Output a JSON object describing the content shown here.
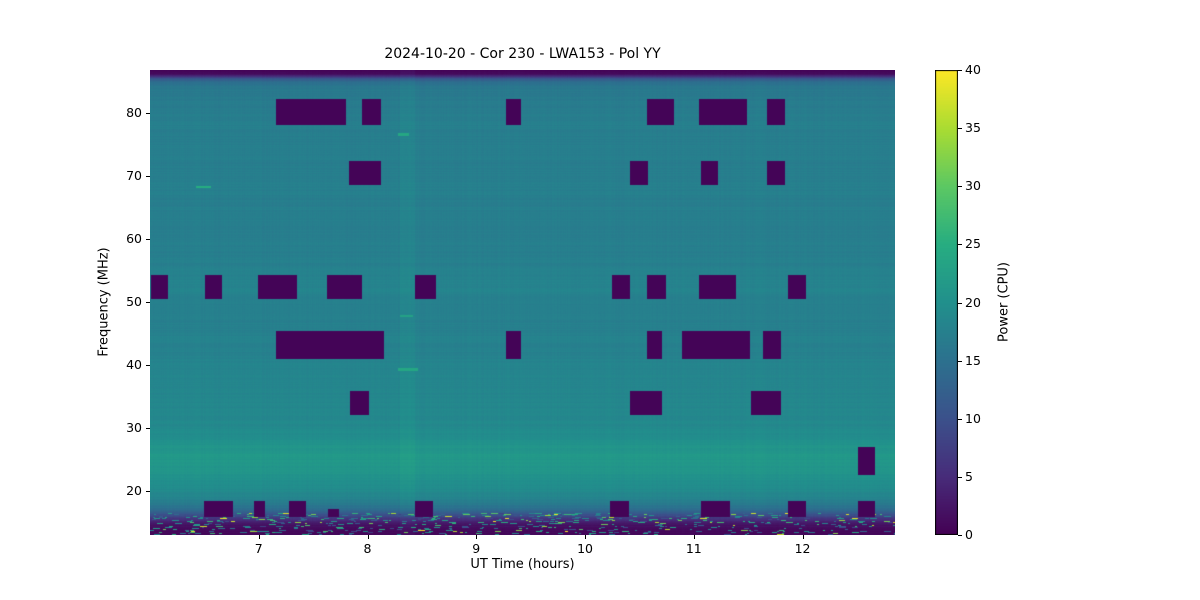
{
  "chart_data": {
    "type": "heatmap",
    "title": "2024-10-20 - Cor 230 - LWA153 - Pol YY",
    "xlabel": "UT Time (hours)",
    "ylabel": "Frequency (MHz)",
    "xlim": [
      6.0,
      12.85
    ],
    "ylim": [
      13.0,
      86.8
    ],
    "xticks": [
      7,
      8,
      9,
      10,
      11,
      12
    ],
    "yticks": [
      20,
      30,
      40,
      50,
      60,
      70,
      80
    ],
    "colorbar": {
      "label": "Power (CPU)",
      "min": 0,
      "max": 40,
      "ticks": [
        0,
        5,
        10,
        15,
        20,
        25,
        30,
        35,
        40
      ]
    },
    "colormap": "viridis",
    "colormap_stops": [
      [
        0.0,
        "#440154"
      ],
      [
        0.125,
        "#472c7a"
      ],
      [
        0.25,
        "#3b518b"
      ],
      [
        0.375,
        "#2c718e"
      ],
      [
        0.5,
        "#21908c"
      ],
      [
        0.625,
        "#27ad81"
      ],
      [
        0.75,
        "#5cc863"
      ],
      [
        0.875,
        "#aadc32"
      ],
      [
        1.0,
        "#fde725"
      ]
    ],
    "background_profile": [
      [
        86.8,
        0.5
      ],
      [
        86.3,
        0.8
      ],
      [
        85.9,
        5
      ],
      [
        85.4,
        12
      ],
      [
        84.8,
        15
      ],
      [
        84.0,
        16.3
      ],
      [
        82.0,
        16.8
      ],
      [
        80.0,
        17.0
      ],
      [
        78.0,
        17.3
      ],
      [
        76.0,
        17.0
      ],
      [
        74.0,
        17.2
      ],
      [
        72.0,
        17.0
      ],
      [
        70.0,
        17.2
      ],
      [
        68.0,
        17.4
      ],
      [
        66.0,
        17.1
      ],
      [
        64.0,
        17.3
      ],
      [
        62.0,
        17.1
      ],
      [
        60.0,
        17.3
      ],
      [
        58.0,
        17.1
      ],
      [
        56.0,
        17.4
      ],
      [
        54.0,
        17.6
      ],
      [
        52.5,
        18.1
      ],
      [
        51.0,
        17.8
      ],
      [
        50.0,
        17.3
      ],
      [
        48.0,
        17.6
      ],
      [
        46.0,
        17.4
      ],
      [
        44.0,
        17.8
      ],
      [
        42.0,
        17.6
      ],
      [
        40.0,
        18.0
      ],
      [
        38.0,
        18.1
      ],
      [
        36.0,
        18.3
      ],
      [
        34.0,
        18.5
      ],
      [
        32.0,
        18.7
      ],
      [
        30.0,
        19.0
      ],
      [
        28.5,
        19.6
      ],
      [
        27.0,
        20.8
      ],
      [
        25.5,
        21.4
      ],
      [
        24.0,
        21.2
      ],
      [
        22.5,
        20.6
      ],
      [
        21.0,
        19.6
      ],
      [
        20.0,
        19.1
      ],
      [
        19.0,
        18.2
      ],
      [
        18.0,
        16.8
      ],
      [
        17.0,
        14.5
      ],
      [
        16.4,
        11.5
      ],
      [
        15.9,
        8.5
      ],
      [
        15.4,
        5.5
      ],
      [
        15.0,
        3.5
      ],
      [
        14.5,
        2.0
      ],
      [
        14.0,
        1.2
      ],
      [
        13.0,
        0.8
      ]
    ],
    "flagged_regions": [
      {
        "t0": 7.16,
        "t1": 7.8,
        "f0": 78.1,
        "f1": 82.2
      },
      {
        "t0": 7.95,
        "t1": 8.12,
        "f0": 78.1,
        "f1": 82.2
      },
      {
        "t0": 9.27,
        "t1": 9.41,
        "f0": 78.1,
        "f1": 82.2
      },
      {
        "t0": 10.57,
        "t1": 10.82,
        "f0": 78.1,
        "f1": 82.2
      },
      {
        "t0": 11.05,
        "t1": 11.49,
        "f0": 78.1,
        "f1": 82.2
      },
      {
        "t0": 11.67,
        "t1": 11.84,
        "f0": 78.1,
        "f1": 82.2
      },
      {
        "t0": 7.83,
        "t1": 8.12,
        "f0": 68.6,
        "f1": 72.4
      },
      {
        "t0": 10.41,
        "t1": 10.58,
        "f0": 68.6,
        "f1": 72.4
      },
      {
        "t0": 11.07,
        "t1": 11.22,
        "f0": 68.6,
        "f1": 72.4
      },
      {
        "t0": 11.67,
        "t1": 11.84,
        "f0": 68.6,
        "f1": 72.4
      },
      {
        "t0": 6.01,
        "t1": 6.17,
        "f0": 50.4,
        "f1": 54.2
      },
      {
        "t0": 6.51,
        "t1": 6.66,
        "f0": 50.4,
        "f1": 54.2
      },
      {
        "t0": 6.99,
        "t1": 7.35,
        "f0": 50.4,
        "f1": 54.2
      },
      {
        "t0": 7.63,
        "t1": 7.95,
        "f0": 50.4,
        "f1": 54.2
      },
      {
        "t0": 8.44,
        "t1": 8.63,
        "f0": 50.4,
        "f1": 54.2
      },
      {
        "t0": 10.25,
        "t1": 10.41,
        "f0": 50.4,
        "f1": 54.2
      },
      {
        "t0": 10.57,
        "t1": 10.74,
        "f0": 50.4,
        "f1": 54.2
      },
      {
        "t0": 11.05,
        "t1": 11.39,
        "f0": 50.4,
        "f1": 54.2
      },
      {
        "t0": 11.87,
        "t1": 12.03,
        "f0": 50.4,
        "f1": 54.2
      },
      {
        "t0": 7.16,
        "t1": 8.15,
        "f0": 40.9,
        "f1": 45.3
      },
      {
        "t0": 9.27,
        "t1": 9.41,
        "f0": 40.9,
        "f1": 45.3
      },
      {
        "t0": 10.57,
        "t1": 10.71,
        "f0": 40.9,
        "f1": 45.3
      },
      {
        "t0": 10.89,
        "t1": 11.52,
        "f0": 40.9,
        "f1": 45.3
      },
      {
        "t0": 11.64,
        "t1": 11.8,
        "f0": 40.9,
        "f1": 45.3
      },
      {
        "t0": 7.84,
        "t1": 8.01,
        "f0": 32.1,
        "f1": 35.9
      },
      {
        "t0": 10.41,
        "t1": 10.71,
        "f0": 32.1,
        "f1": 35.9
      },
      {
        "t0": 11.53,
        "t1": 11.8,
        "f0": 32.1,
        "f1": 35.9
      },
      {
        "t0": 12.51,
        "t1": 12.67,
        "f0": 22.6,
        "f1": 27.0
      },
      {
        "t0": 6.5,
        "t1": 6.76,
        "f0": 15.9,
        "f1": 18.4
      },
      {
        "t0": 6.96,
        "t1": 7.06,
        "f0": 15.9,
        "f1": 18.4
      },
      {
        "t0": 7.28,
        "t1": 7.43,
        "f0": 15.9,
        "f1": 18.4
      },
      {
        "t0": 7.64,
        "t1": 7.74,
        "f0": 15.9,
        "f1": 17.2
      },
      {
        "t0": 8.44,
        "t1": 8.6,
        "f0": 15.9,
        "f1": 18.4
      },
      {
        "t0": 10.23,
        "t1": 10.4,
        "f0": 15.9,
        "f1": 18.4
      },
      {
        "t0": 11.07,
        "t1": 11.33,
        "f0": 15.9,
        "f1": 18.4
      },
      {
        "t0": 11.87,
        "t1": 12.03,
        "f0": 15.9,
        "f1": 18.4
      },
      {
        "t0": 12.51,
        "t1": 12.67,
        "f0": 15.9,
        "f1": 18.4
      }
    ],
    "bright_dashes": [
      {
        "t": 6.42,
        "dt": 0.14,
        "f": 68.2,
        "df": 0.35,
        "power": 25
      },
      {
        "t": 8.28,
        "dt": 0.1,
        "f": 76.6,
        "df": 0.4,
        "power": 24
      },
      {
        "t": 8.3,
        "dt": 0.12,
        "f": 47.7,
        "df": 0.35,
        "power": 23
      },
      {
        "t": 8.28,
        "dt": 0.18,
        "f": 39.3,
        "df": 0.4,
        "power": 24
      }
    ],
    "column_tints": [
      {
        "t": 8.3,
        "dt": 0.14,
        "dp": 0.9
      }
    ],
    "noise": {
      "seed": 42,
      "row_jitter": 0.45,
      "col_jitter": 0.3,
      "speckle_below_mhz": 16.4
    }
  }
}
